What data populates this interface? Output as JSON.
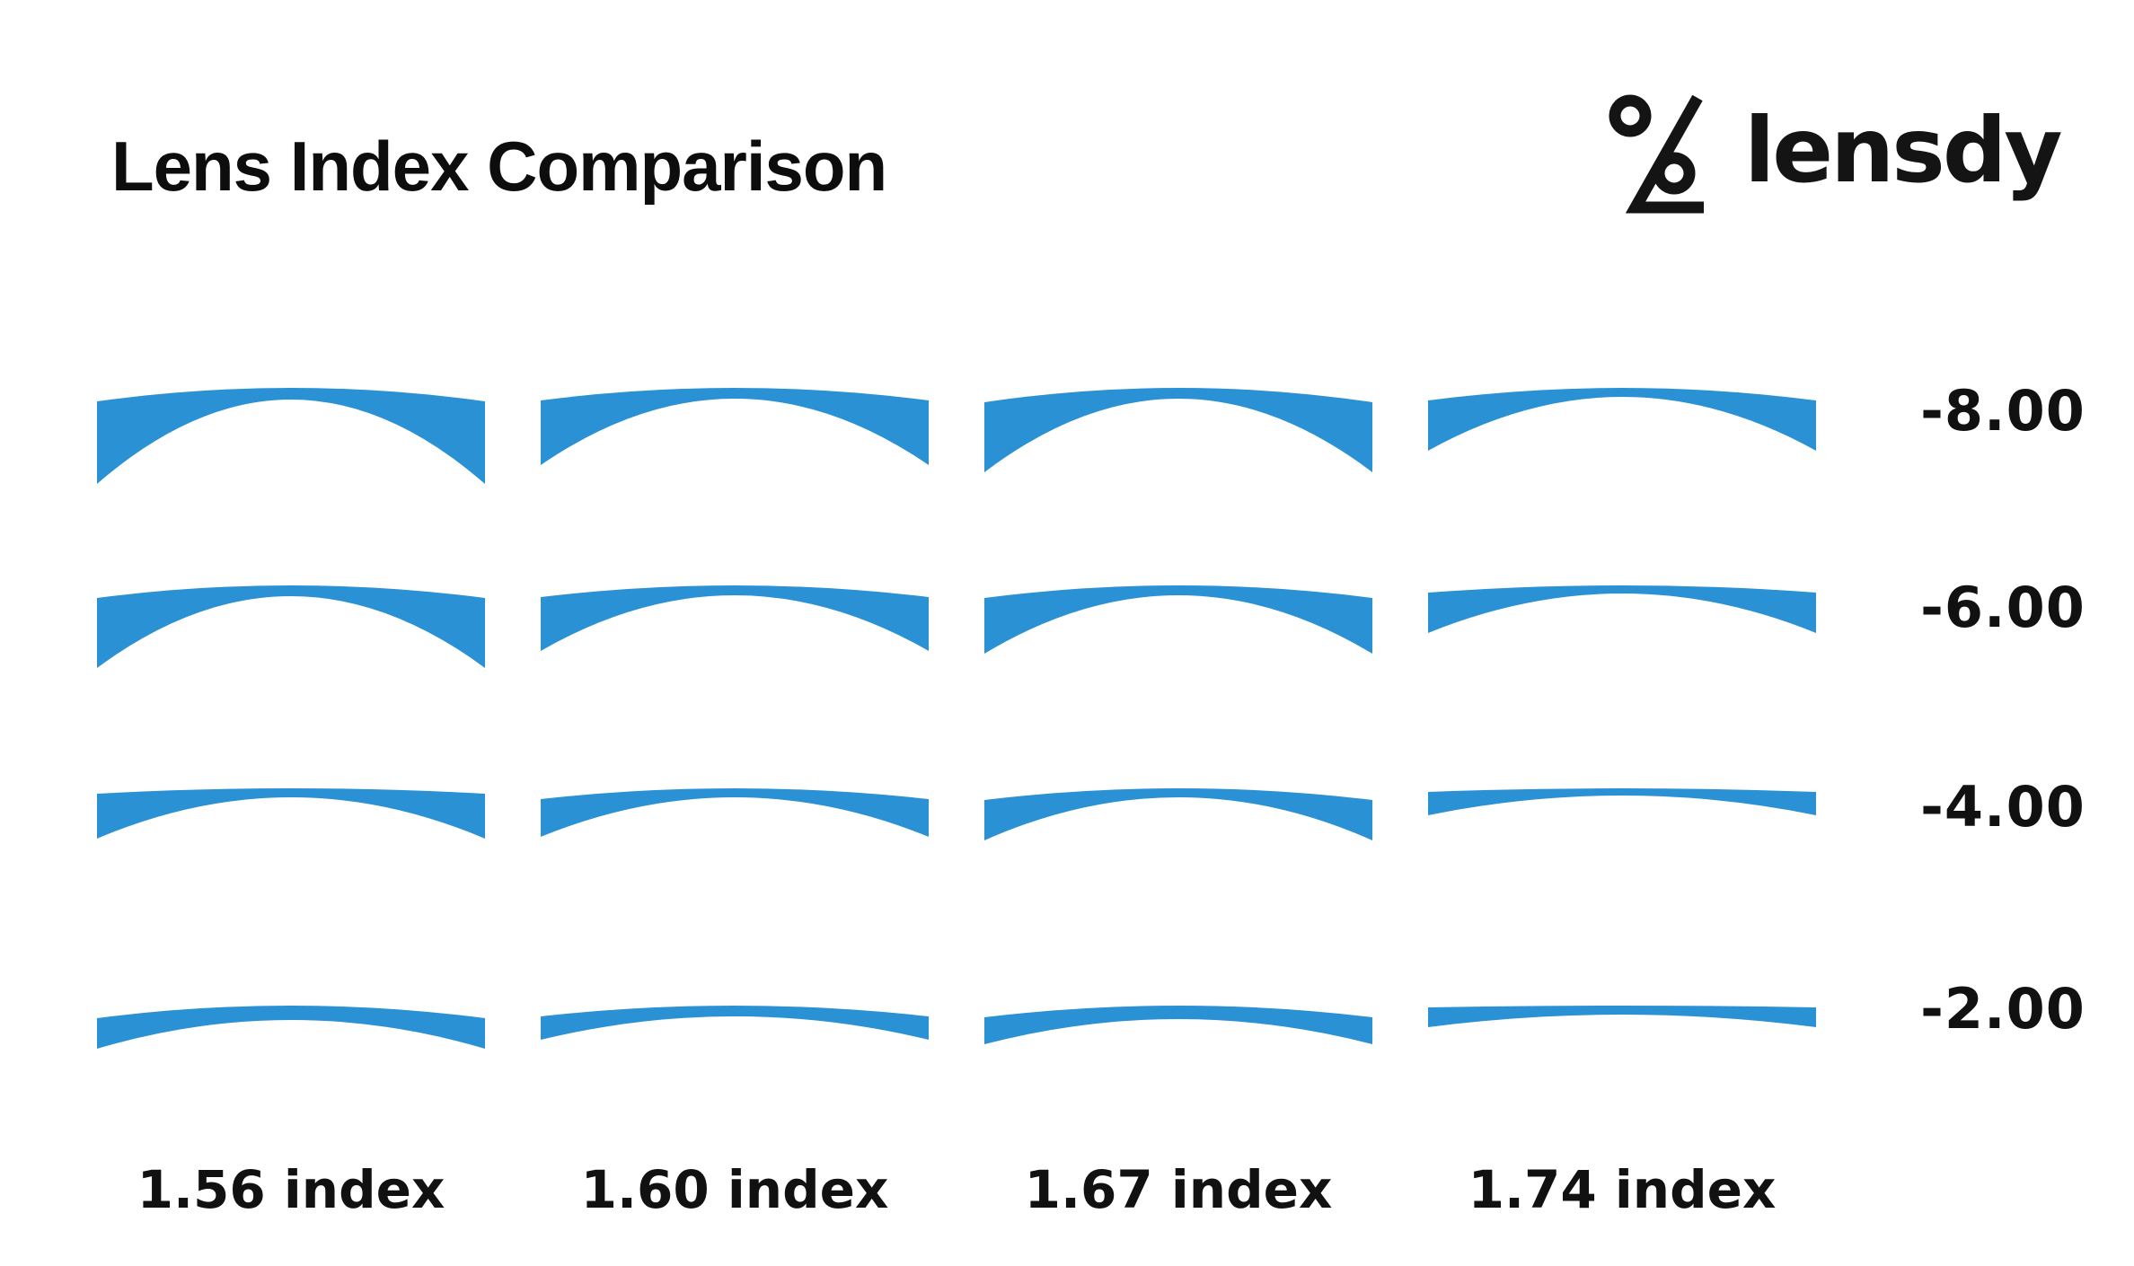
{
  "header": {
    "title": "Lens Index Comparison"
  },
  "brand": {
    "name": "lensdy",
    "icon": "percent-lens-logo-icon"
  },
  "colors": {
    "lens_blue": "#2b91d5",
    "text_black": "#111111"
  },
  "grid": {
    "columns": [
      {
        "index": "1.56",
        "label": "1.56 index"
      },
      {
        "index": "1.60",
        "label": "1.60 index"
      },
      {
        "index": "1.67",
        "label": "1.67 index"
      },
      {
        "index": "1.74",
        "label": "1.74 index"
      }
    ],
    "rows": [
      {
        "power": "-8.00",
        "cells": [
          {
            "edge": 92,
            "center": 13,
            "sag": 15
          },
          {
            "edge": 72,
            "center": 12,
            "sag": 14
          },
          {
            "edge": 78,
            "center": 12,
            "sag": 16
          },
          {
            "edge": 56,
            "center": 10,
            "sag": 14
          }
        ]
      },
      {
        "power": "-6.00",
        "cells": [
          {
            "edge": 78,
            "center": 12,
            "sag": 14
          },
          {
            "edge": 60,
            "center": 11,
            "sag": 13
          },
          {
            "edge": 62,
            "center": 11,
            "sag": 14
          },
          {
            "edge": 45,
            "center": 9,
            "sag": 8
          }
        ]
      },
      {
        "power": "-4.00",
        "cells": [
          {
            "edge": 50,
            "center": 10,
            "sag": 6
          },
          {
            "edge": 42,
            "center": 10,
            "sag": 12
          },
          {
            "edge": 45,
            "center": 10,
            "sag": 13
          },
          {
            "edge": 26,
            "center": 8,
            "sag": 4
          }
        ]
      },
      {
        "power": "-2.00",
        "cells": [
          {
            "edge": 34,
            "center": 16,
            "sag": 14
          },
          {
            "edge": 26,
            "center": 12,
            "sag": 12
          },
          {
            "edge": 30,
            "center": 15,
            "sag": 13
          },
          {
            "edge": 22,
            "center": 10,
            "sag": 2
          }
        ]
      }
    ]
  }
}
